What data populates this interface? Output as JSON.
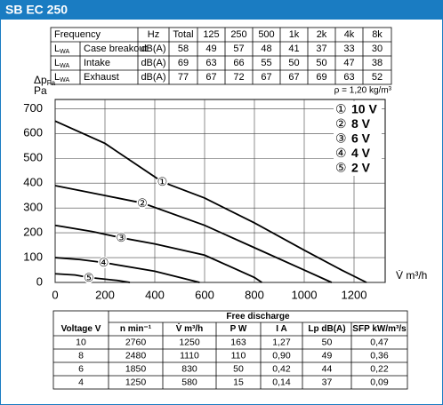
{
  "header": {
    "title": "SB EC 250"
  },
  "noise_table": {
    "header": [
      "Frequency",
      "Hz",
      "Total",
      "125",
      "250",
      "500",
      "1k",
      "2k",
      "4k",
      "8k"
    ],
    "symbol": "L",
    "symbol_sub": "WA",
    "rows": [
      {
        "label": "Case breakout",
        "unit": "dB(A)",
        "total": 58,
        "values": [
          49,
          57,
          48,
          41,
          37,
          33,
          30
        ]
      },
      {
        "label": "Intake",
        "unit": "dB(A)",
        "total": 69,
        "values": [
          63,
          66,
          55,
          50,
          50,
          47,
          38
        ]
      },
      {
        "label": "Exhaust",
        "unit": "dB(A)",
        "total": 77,
        "values": [
          67,
          72,
          67,
          67,
          69,
          63,
          52
        ]
      }
    ]
  },
  "chart_data": {
    "type": "line",
    "y_label": "Δp",
    "y_label_sub": "Fa",
    "y_unit": "Pa",
    "x_label": "V̇ m³/h",
    "note": "ρ = 1,20 kg/m³",
    "xlim": [
      0,
      1325
    ],
    "ylim": [
      0,
      737
    ],
    "xticks": [
      0,
      200,
      400,
      600,
      800,
      1000,
      1200
    ],
    "yticks": [
      0,
      100,
      200,
      300,
      400,
      500,
      600,
      700
    ],
    "grid": true,
    "legend_position": "upper right",
    "series": [
      {
        "name": "10 V",
        "label": "①",
        "color": "#000000",
        "x": [
          0,
          200,
          430,
          600,
          800,
          1000,
          1150,
          1250
        ],
        "values": [
          650,
          560,
          405,
          340,
          240,
          130,
          50,
          0
        ]
      },
      {
        "name": "8 V",
        "label": "②",
        "color": "#000000",
        "x": [
          0,
          200,
          350,
          600,
          800,
          1000,
          1110
        ],
        "values": [
          390,
          350,
          320,
          230,
          140,
          50,
          0
        ]
      },
      {
        "name": "6 V",
        "label": "③",
        "color": "#000000",
        "x": [
          0,
          150,
          265,
          400,
          600,
          800,
          830
        ],
        "values": [
          230,
          205,
          180,
          155,
          110,
          20,
          0
        ]
      },
      {
        "name": "4 V",
        "label": "④",
        "color": "#000000",
        "x": [
          0,
          100,
          195,
          400,
          580
        ],
        "values": [
          100,
          92,
          80,
          45,
          0
        ]
      },
      {
        "name": "2 V",
        "label": "⑤",
        "color": "#000000",
        "x": [
          0,
          80,
          135,
          250,
          300
        ],
        "values": [
          35,
          30,
          20,
          8,
          0
        ]
      }
    ]
  },
  "performance_table": {
    "group_header": "Free discharge",
    "columns": [
      "Voltage V",
      "n min⁻¹",
      "V̇ m³/h",
      "P W",
      "I A",
      "Lp dB(A)",
      "SFP kW/m³/s"
    ],
    "rows": [
      [
        10,
        2760,
        1250,
        163,
        "1,27",
        50,
        "0,47"
      ],
      [
        8,
        2480,
        1110,
        110,
        "0,90",
        49,
        "0,36"
      ],
      [
        6,
        1850,
        830,
        50,
        "0,42",
        44,
        "0,22"
      ],
      [
        4,
        1250,
        580,
        15,
        "0,14",
        37,
        "0,09"
      ]
    ]
  }
}
